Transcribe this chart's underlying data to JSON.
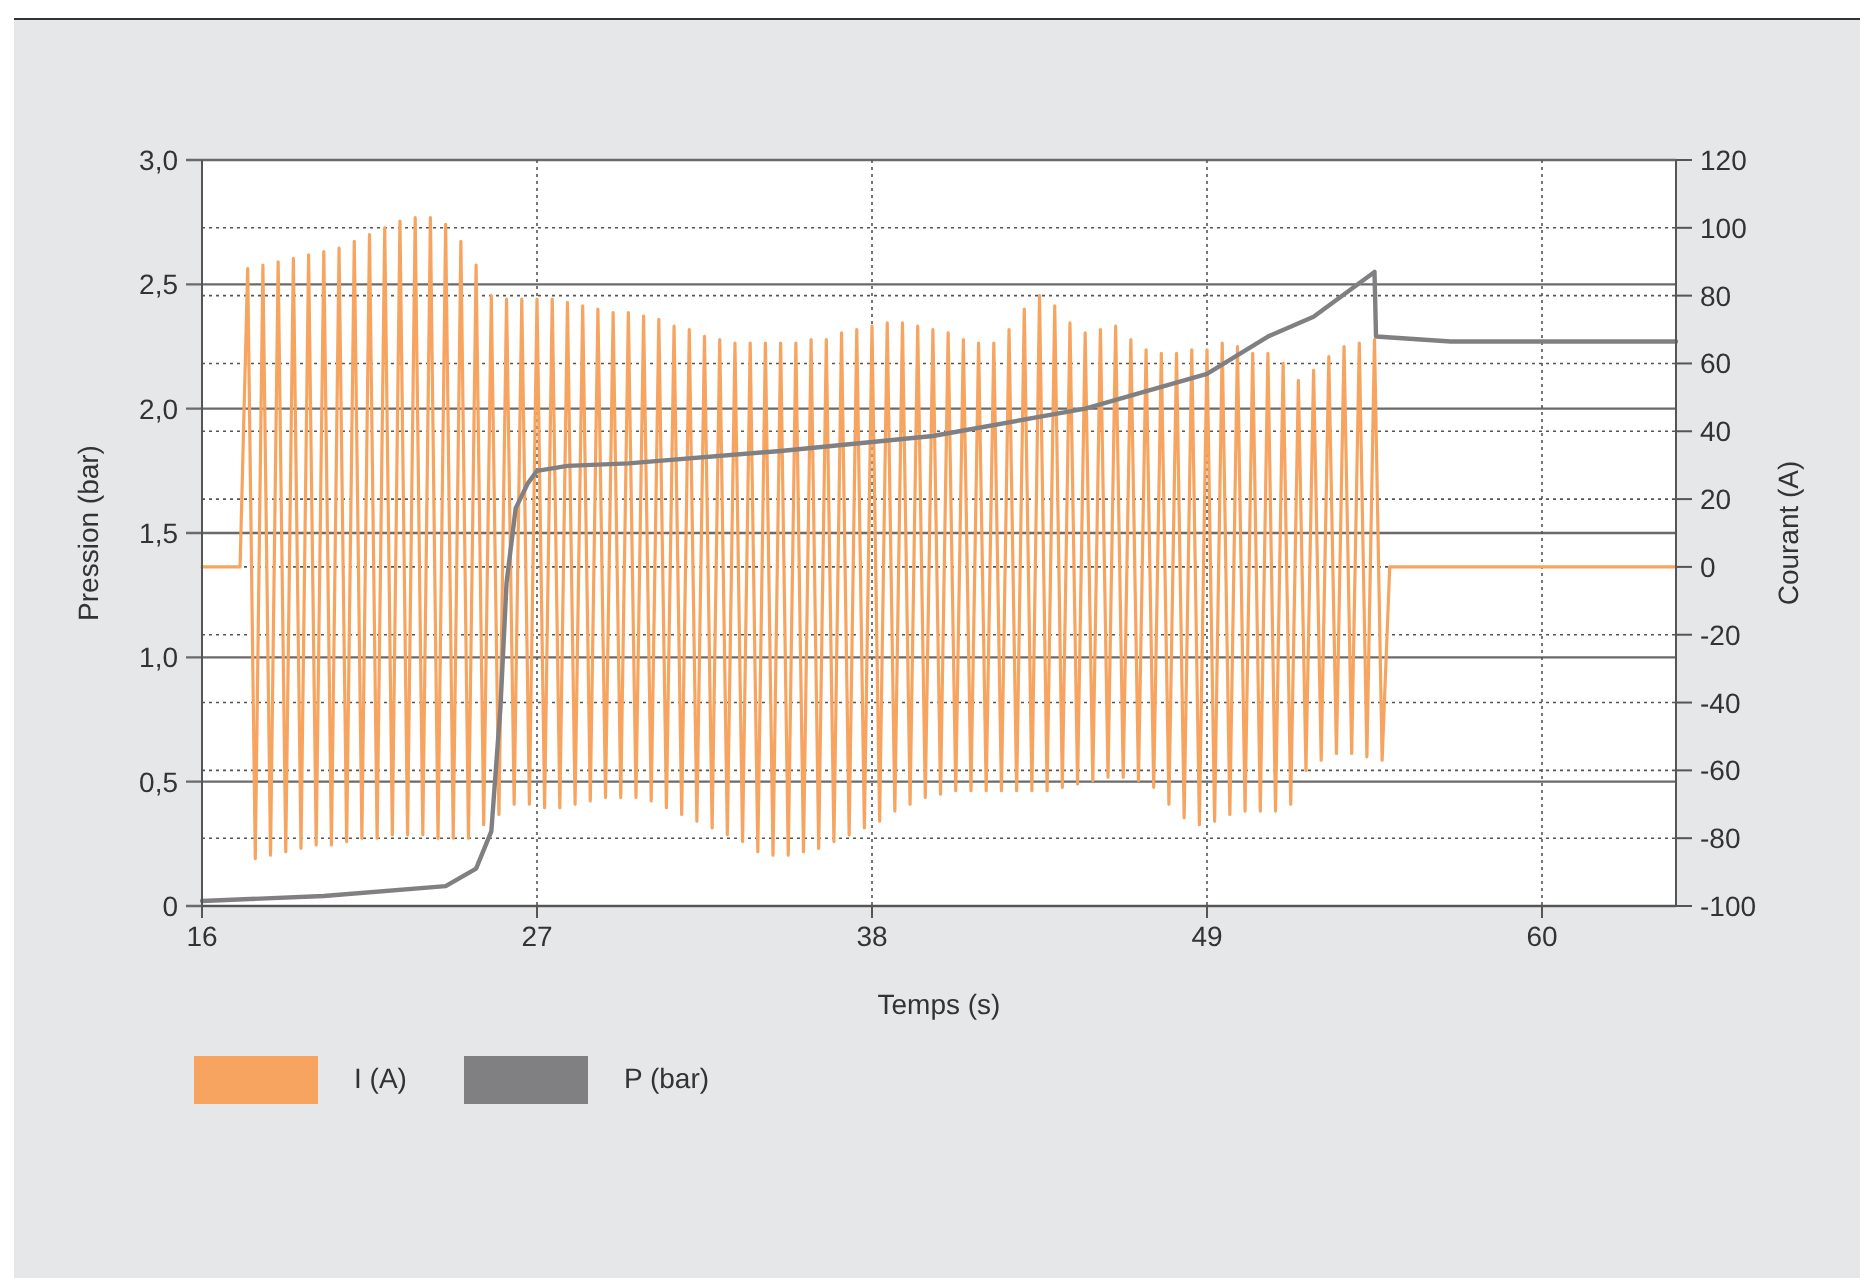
{
  "chart_data": {
    "type": "line",
    "xlabel": "Temps (s)",
    "ylabel": "Pression (bar)",
    "y2label": "Courant (A)",
    "xlim": [
      16,
      64.4
    ],
    "xticks": [
      16,
      27,
      38,
      49,
      60
    ],
    "ylim": [
      0,
      3
    ],
    "yticks": [
      {
        "value": 0,
        "label": "0"
      },
      {
        "value": 0.5,
        "label": "0,5"
      },
      {
        "value": 1,
        "label": "1,0"
      },
      {
        "value": 1.5,
        "label": "1,5"
      },
      {
        "value": 2,
        "label": "2,0"
      },
      {
        "value": 2.5,
        "label": "2,5"
      },
      {
        "value": 3,
        "label": "3,0"
      }
    ],
    "y2lim": [
      -100,
      120
    ],
    "y2ticks": [
      -100,
      -80,
      -60,
      -40,
      -20,
      0,
      20,
      40,
      60,
      80,
      100,
      120
    ],
    "grid": true,
    "legend": "bottom left",
    "line_style": "solid",
    "marker": "none",
    "series": [
      {
        "name": "I (A)",
        "color": "#f7a460",
        "axis": "y2",
        "x": [
          16,
          17.25,
          17.5,
          17.75,
          18,
          18.25,
          18.5,
          18.75,
          19,
          19.25,
          19.5,
          19.75,
          20,
          20.25,
          20.5,
          20.75,
          21,
          21.25,
          21.5,
          21.75,
          22,
          22.25,
          22.5,
          22.75,
          23,
          23.25,
          23.5,
          23.75,
          24,
          24.25,
          24.5,
          24.75,
          25,
          25.25,
          25.5,
          25.75,
          26,
          26.25,
          26.5,
          26.75,
          27,
          27.25,
          27.5,
          27.75,
          28,
          28.25,
          28.5,
          28.75,
          29,
          29.25,
          29.5,
          29.75,
          30,
          30.25,
          30.5,
          30.75,
          31,
          31.25,
          31.5,
          31.75,
          32,
          32.25,
          32.5,
          32.75,
          33,
          33.25,
          33.5,
          33.75,
          34,
          34.25,
          34.5,
          34.75,
          35,
          35.25,
          35.5,
          35.75,
          36,
          36.25,
          36.5,
          36.75,
          37,
          37.25,
          37.5,
          37.75,
          38,
          38.25,
          38.5,
          38.75,
          39,
          39.25,
          39.5,
          39.75,
          40,
          40.25,
          40.5,
          40.75,
          41,
          41.25,
          41.5,
          41.75,
          42,
          42.25,
          42.5,
          42.75,
          43,
          43.25,
          43.5,
          43.75,
          44,
          44.25,
          44.5,
          44.75,
          45,
          45.25,
          45.5,
          45.75,
          46,
          46.25,
          46.5,
          46.75,
          47,
          47.25,
          47.5,
          47.75,
          48,
          48.25,
          48.5,
          48.75,
          49,
          49.25,
          49.5,
          49.75,
          50,
          50.25,
          50.5,
          50.75,
          51,
          51.25,
          51.5,
          51.75,
          52,
          52.25,
          52.5,
          52.75,
          53,
          53.25,
          53.5,
          53.75,
          54,
          54.25,
          54.5,
          54.75,
          55,
          64.4
        ],
        "values": [
          0,
          0,
          88,
          -86,
          89,
          -85,
          90,
          -84,
          91,
          -83,
          92,
          -82,
          93,
          -82,
          94,
          -81,
          96,
          -80,
          98,
          -80,
          100,
          -79,
          102,
          -79,
          103,
          -79,
          103,
          -80,
          101,
          -80,
          96,
          -80,
          89,
          -76,
          80,
          -73,
          79,
          -70,
          79,
          -70,
          79,
          -71,
          79,
          -71,
          78,
          -70,
          77,
          -69,
          76,
          -68,
          75,
          -68,
          75,
          -68,
          74,
          -69,
          73,
          -71,
          71,
          -73,
          70,
          -75,
          68,
          -77,
          67,
          -79,
          66,
          -81,
          66,
          -84,
          66,
          -85,
          66,
          -85,
          66,
          -84,
          67,
          -83,
          67,
          -81,
          69,
          -79,
          70,
          -77,
          71,
          -75,
          72,
          -72,
          72,
          -70,
          71,
          -68,
          70,
          -67,
          69,
          -66,
          67,
          -66,
          66,
          -66,
          66,
          -66,
          70,
          -66,
          76,
          -66,
          80,
          -66,
          77,
          -65,
          72,
          -64,
          69,
          -63,
          70,
          -62,
          71,
          -62,
          67,
          -63,
          64,
          -65,
          63,
          -70,
          63,
          -74,
          64,
          -76,
          64,
          -75,
          66,
          -73,
          65,
          -72,
          63,
          -72,
          63,
          -72,
          60,
          -70,
          55,
          -60,
          58,
          -57,
          62,
          -55,
          65,
          -55,
          66,
          -56,
          67,
          -57,
          0,
          0
        ]
      },
      {
        "name": "P (bar)",
        "color": "#808083",
        "axis": "y",
        "x": [
          16,
          20,
          24,
          25,
          25.5,
          25.8,
          26,
          26.3,
          26.7,
          27,
          28,
          30,
          35,
          40,
          45,
          49,
          51,
          52.5,
          54.5,
          54.55,
          57,
          60,
          64.4
        ],
        "values": [
          0.02,
          0.04,
          0.08,
          0.15,
          0.3,
          0.8,
          1.3,
          1.6,
          1.7,
          1.75,
          1.77,
          1.78,
          1.83,
          1.89,
          2.0,
          2.14,
          2.29,
          2.37,
          2.55,
          2.29,
          2.27,
          2.27,
          2.27
        ]
      }
    ]
  }
}
